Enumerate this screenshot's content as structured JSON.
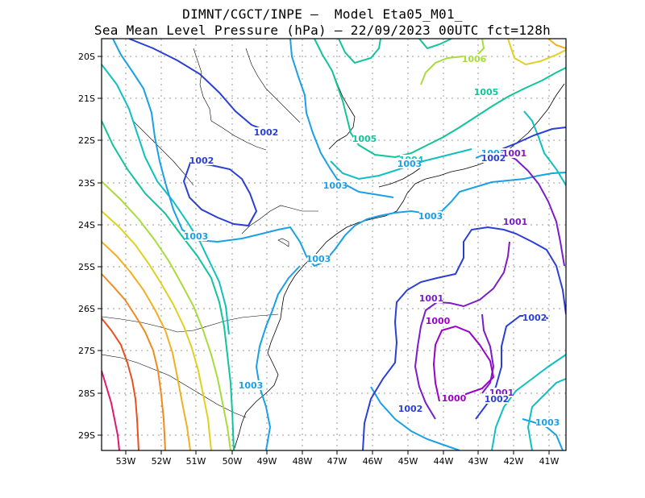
{
  "title_line1": "DIMNT/CGCT/INPE –  Model Eta05_M01_",
  "title_line2": "Sea Mean Level Pressure (hPa) – 22/09/2023 00UTC fct=128h",
  "lat_labels": [
    "20S",
    "21S",
    "22S",
    "23S",
    "24S",
    "25S",
    "26S",
    "27S",
    "28S",
    "29S"
  ],
  "lon_labels": [
    "53W",
    "52W",
    "51W",
    "50W",
    "49W",
    "48W",
    "47W",
    "46W",
    "45W",
    "44W",
    "43W",
    "42W",
    "41W"
  ],
  "colors": {
    "c1000": "#9b00c8",
    "c1001": "#7a1cc8",
    "c1002": "#2a3fd6",
    "c1003": "#1aa0e6",
    "c1004": "#10c0c0",
    "c1005": "#12c49a",
    "c1006": "#a8dc3c",
    "c1007": "#e0d020",
    "c1008": "#f0b020",
    "c1009": "#f08a20",
    "c1010": "#e85020",
    "c1011": "#e01870",
    "grid": "#999999",
    "coast": "#000000"
  },
  "contour_labels": [
    {
      "text": "1006",
      "color": "c1006"
    },
    {
      "text": "1005",
      "color": "c1005"
    },
    {
      "text": "1005",
      "color": "c1005"
    },
    {
      "text": "1004",
      "color": "c1004"
    },
    {
      "text": "1003",
      "color": "c1003"
    },
    {
      "text": "1001",
      "color": "c1001"
    },
    {
      "text": "1002",
      "color": "c1002"
    },
    {
      "text": "1002",
      "color": "c1002"
    },
    {
      "text": "1002",
      "color": "c1002"
    },
    {
      "text": "1003",
      "color": "c1003"
    },
    {
      "text": "1003",
      "color": "c1003"
    },
    {
      "text": "1003",
      "color": "c1003"
    },
    {
      "text": "1003",
      "color": "c1003"
    },
    {
      "text": "1001",
      "color": "c1001"
    },
    {
      "text": "1001",
      "color": "c1001"
    },
    {
      "text": "1000",
      "color": "c1000"
    },
    {
      "text": "1002",
      "color": "c1002"
    },
    {
      "text": "1000",
      "color": "c1000"
    },
    {
      "text": "1001",
      "color": "c1001"
    },
    {
      "text": "1002",
      "color": "c1002"
    },
    {
      "text": "1002",
      "color": "c1002"
    },
    {
      "text": "1003",
      "color": "c1003"
    },
    {
      "text": "1003",
      "color": "c1003"
    },
    {
      "text": "1003",
      "color": "c1003"
    }
  ]
}
